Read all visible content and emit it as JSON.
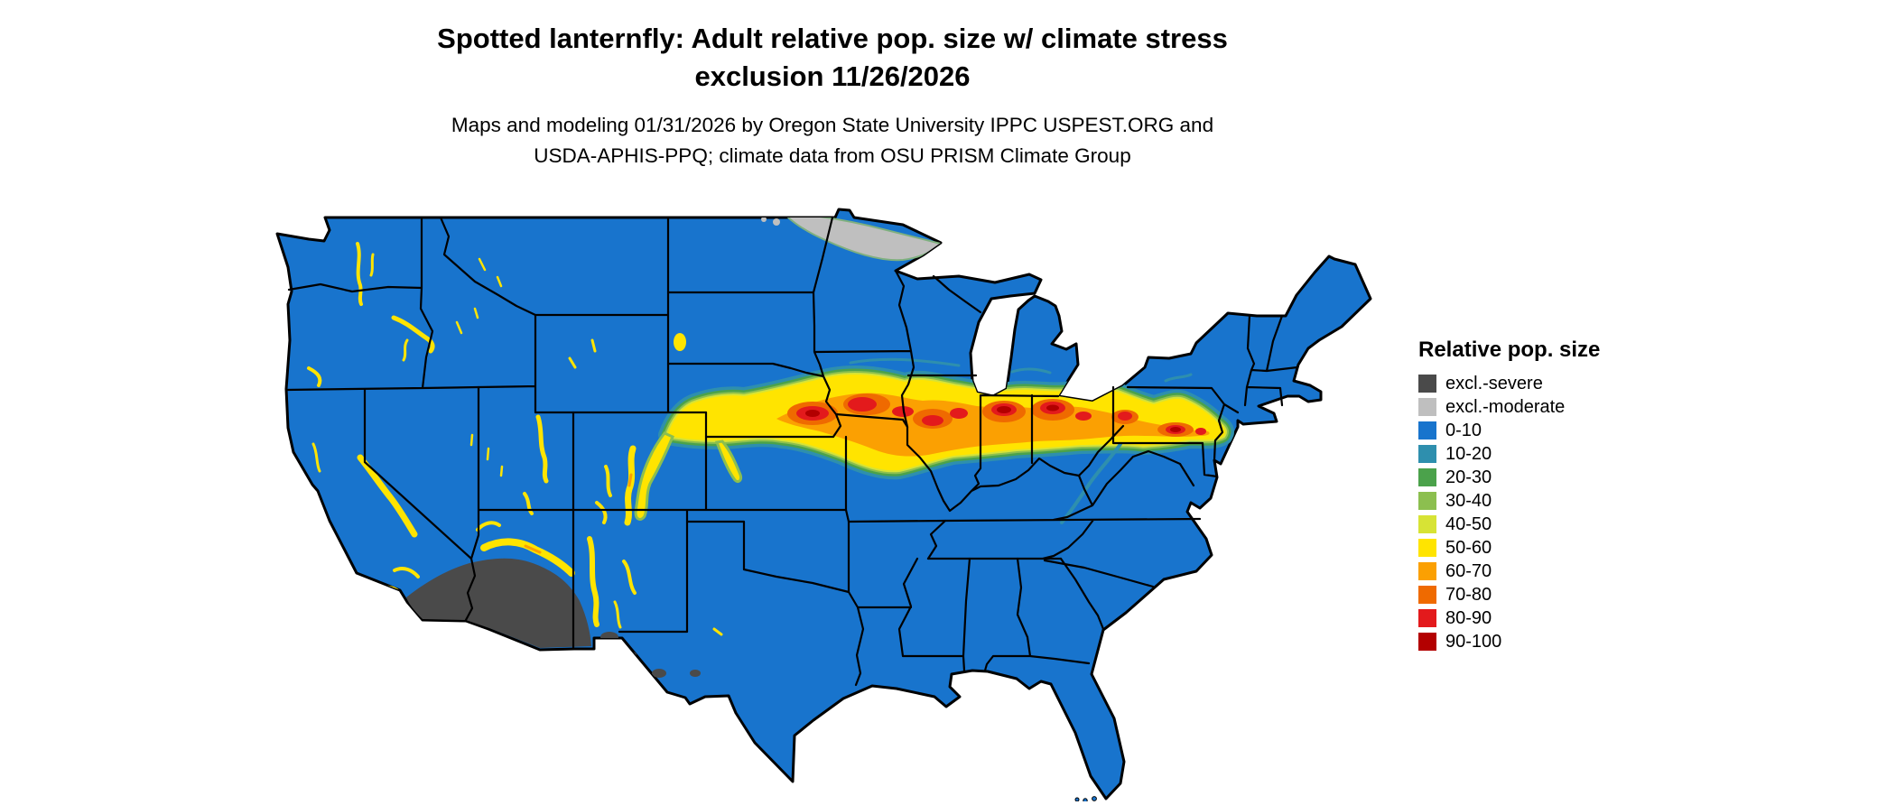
{
  "header": {
    "title_line1": "Spotted lanternfly: Adult relative pop. size w/ climate stress",
    "title_line2": "exclusion 11/26/2026",
    "subtitle_line1": "Maps and modeling 01/31/2026 by Oregon State University IPPC USPEST.ORG and",
    "subtitle_line2": "USDA-APHIS-PPQ; climate data from OSU PRISM Climate Group"
  },
  "legend": {
    "title": "Relative pop. size",
    "items": [
      {
        "label": "excl.-severe",
        "color": "#4a4a4a"
      },
      {
        "label": "excl.-moderate",
        "color": "#bfbfbf"
      },
      {
        "label": "0-10",
        "color": "#1874cd"
      },
      {
        "label": "10-20",
        "color": "#2e8fae"
      },
      {
        "label": "20-30",
        "color": "#4ba24b"
      },
      {
        "label": "30-40",
        "color": "#8cbf4f"
      },
      {
        "label": "40-50",
        "color": "#d7e335"
      },
      {
        "label": "50-60",
        "color": "#ffe400"
      },
      {
        "label": "60-70",
        "color": "#fba002"
      },
      {
        "label": "70-80",
        "color": "#ef6a00"
      },
      {
        "label": "80-90",
        "color": "#e31a1c"
      },
      {
        "label": "90-100",
        "color": "#b30000"
      }
    ]
  },
  "map": {
    "base_color": "#1874cd",
    "border_color": "#000000",
    "background_color": "#ffffff"
  }
}
